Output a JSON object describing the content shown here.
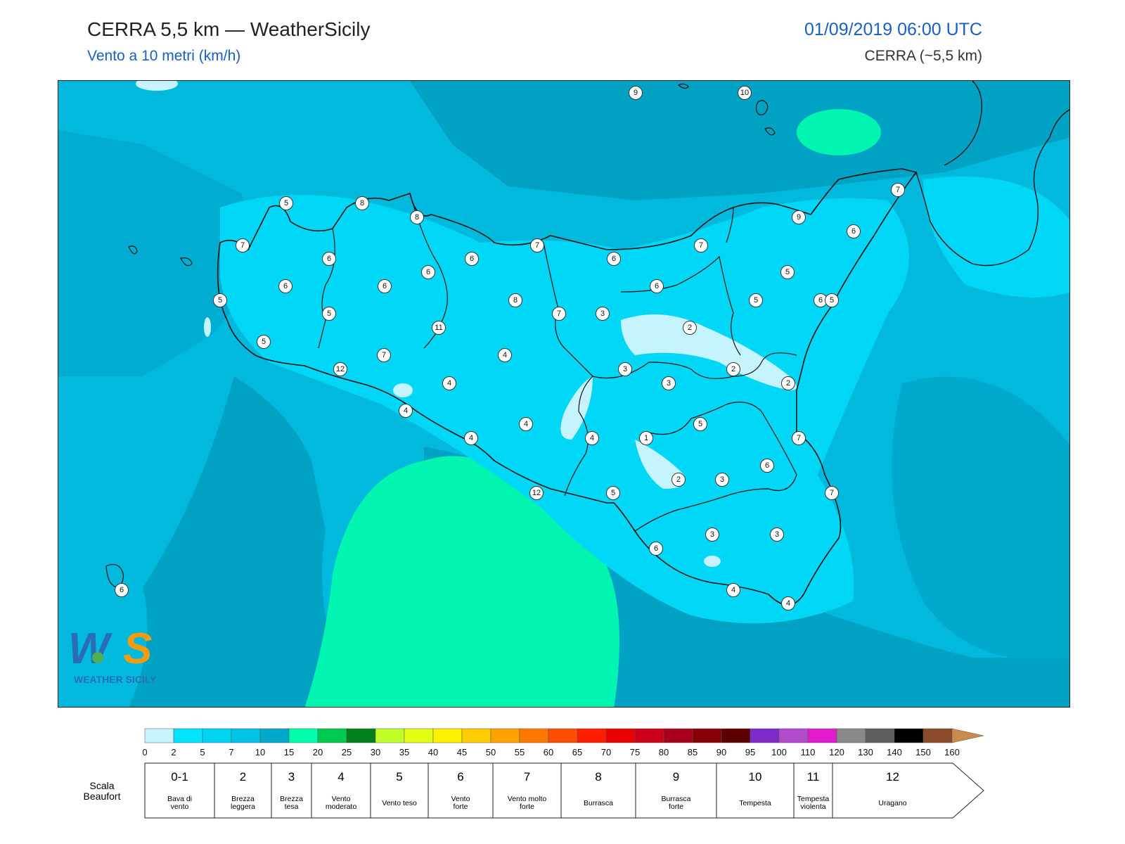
{
  "header": {
    "title": "CERRA 5,5 km — WeatherSicily",
    "subtitle": "Vento a 10 metri (km/h)",
    "datetime": "01/09/2019 06:00 UTC",
    "model": "CERRA (~5,5 km)"
  },
  "logo": {
    "letters": "WS",
    "text": "WEATHER SICILY"
  },
  "colorbar": {
    "ticks": [
      "0",
      "2",
      "5",
      "7",
      "10",
      "15",
      "20",
      "25",
      "30",
      "35",
      "40",
      "45",
      "50",
      "55",
      "60",
      "65",
      "70",
      "75",
      "80",
      "85",
      "90",
      "95",
      "100",
      "110",
      "120",
      "130",
      "140",
      "150",
      "160"
    ],
    "colors": [
      "#c8f4ff",
      "#00e4ff",
      "#00d4f2",
      "#00c3e6",
      "#00a9cc",
      "#00ffad",
      "#00c94f",
      "#007f1a",
      "#c0ff28",
      "#e4ff16",
      "#fff200",
      "#ffcc00",
      "#ffa200",
      "#ff7800",
      "#ff4e00",
      "#ff1e00",
      "#ea0000",
      "#cc0018",
      "#a8001c",
      "#870008",
      "#5e0000",
      "#7c2bc8",
      "#b34ccc",
      "#e01ccc",
      "#898989",
      "#5e5e5e",
      "#000000",
      "#8b4b2a",
      "#cc8a4e"
    ]
  },
  "beaufort": {
    "label": "Scala\nBeaufort",
    "items": [
      {
        "num": "0-1",
        "name": "Bava di vento"
      },
      {
        "num": "2",
        "name": "Brezza leggera"
      },
      {
        "num": "3",
        "name": "Brezza tesa"
      },
      {
        "num": "4",
        "name": "Vento moderato"
      },
      {
        "num": "5",
        "name": "Vento teso"
      },
      {
        "num": "6",
        "name": "Vento forte"
      },
      {
        "num": "7",
        "name": "Vento molto forte"
      },
      {
        "num": "8",
        "name": "Burrasca"
      },
      {
        "num": "9",
        "name": "Burrasca forte"
      },
      {
        "num": "10",
        "name": "Tempesta"
      },
      {
        "num": "11",
        "name": "Tempesta violenta"
      },
      {
        "num": "12",
        "name": "Uragano"
      }
    ]
  },
  "map_labels": [
    {
      "v": "9"
    },
    {
      "v": "10"
    },
    {
      "v": "5"
    },
    {
      "v": "7"
    },
    {
      "v": "8"
    },
    {
      "v": "8"
    },
    {
      "v": "7"
    },
    {
      "v": "6"
    },
    {
      "v": "6"
    },
    {
      "v": "6"
    },
    {
      "v": "6"
    },
    {
      "v": "6"
    },
    {
      "v": "5"
    },
    {
      "v": "5"
    },
    {
      "v": "5"
    },
    {
      "v": "7"
    },
    {
      "v": "12"
    },
    {
      "v": "11"
    },
    {
      "v": "8"
    },
    {
      "v": "7"
    },
    {
      "v": "3"
    },
    {
      "v": "7"
    },
    {
      "v": "9"
    },
    {
      "v": "6"
    },
    {
      "v": "7"
    },
    {
      "v": "5"
    },
    {
      "v": "5"
    },
    {
      "v": "6"
    },
    {
      "v": "6"
    },
    {
      "v": "2"
    },
    {
      "v": "2"
    },
    {
      "v": "2"
    },
    {
      "v": "6"
    },
    {
      "v": "3"
    },
    {
      "v": "3"
    },
    {
      "v": "4"
    },
    {
      "v": "4"
    },
    {
      "v": "4"
    },
    {
      "v": "4"
    },
    {
      "v": "4"
    },
    {
      "v": "4"
    },
    {
      "v": "1"
    },
    {
      "v": "5"
    },
    {
      "v": "7"
    },
    {
      "v": "6"
    },
    {
      "v": "2"
    },
    {
      "v": "3"
    },
    {
      "v": "7"
    },
    {
      "v": "12"
    },
    {
      "v": "5"
    },
    {
      "v": "6"
    },
    {
      "v": "3"
    },
    {
      "v": "3"
    },
    {
      "v": "4"
    },
    {
      "v": "4"
    },
    {
      "v": "6"
    },
    {
      "v": "5"
    }
  ]
}
